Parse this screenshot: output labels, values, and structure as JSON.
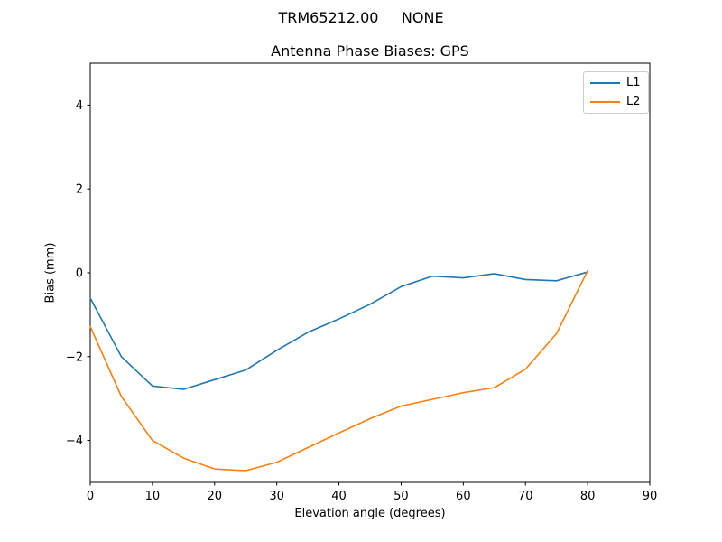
{
  "chart_data": {
    "type": "line",
    "suptitle": "TRM65212.00     NONE",
    "title": "Antenna Phase Biases: GPS",
    "xlabel": "Elevation angle (degrees)",
    "ylabel": "Bias (mm)",
    "xlim": [
      0,
      90
    ],
    "ylim": [
      -5,
      5
    ],
    "xticks": [
      0,
      10,
      20,
      30,
      40,
      50,
      60,
      70,
      80,
      90
    ],
    "yticks": [
      -4,
      -2,
      0,
      2,
      4
    ],
    "grid": false,
    "legend_position": "upper right",
    "background_color": "#ffffff",
    "spine_color": "#000000",
    "x": [
      0,
      5,
      10,
      15,
      20,
      25,
      30,
      35,
      40,
      45,
      50,
      55,
      60,
      65,
      70,
      75,
      80
    ],
    "series": [
      {
        "name": "L1",
        "color": "#1f77b4",
        "values": [
          -0.6,
          -2.0,
          -2.7,
          -2.78,
          -2.55,
          -2.32,
          -1.85,
          -1.42,
          -1.1,
          -0.75,
          -0.33,
          -0.08,
          -0.12,
          -0.02,
          -0.16,
          -0.19,
          0.02
        ]
      },
      {
        "name": "L2",
        "color": "#ff7f0e",
        "values": [
          -1.28,
          -2.95,
          -4.0,
          -4.42,
          -4.68,
          -4.72,
          -4.52,
          -4.17,
          -3.82,
          -3.48,
          -3.18,
          -3.02,
          -2.86,
          -2.74,
          -2.3,
          -1.45,
          0.05
        ]
      }
    ]
  }
}
